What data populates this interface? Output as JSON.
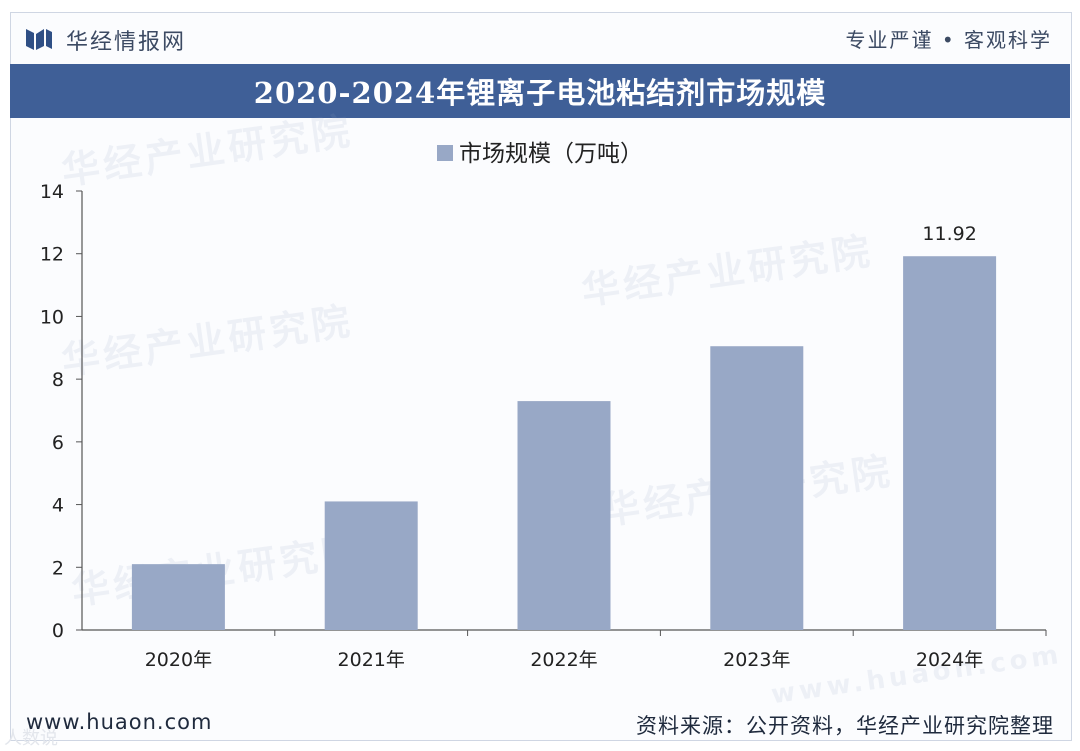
{
  "header": {
    "brand": "华经情报网",
    "slogan": "专业严谨 • 客观科学"
  },
  "title": "2020-2024年锂离子电池粘结剂市场规模",
  "watermarks": [
    "华经产业研究院",
    "华经产业研究院",
    "华经产业研究院",
    "华经产业研究院",
    "华经产业研究院",
    "www.huaon.com"
  ],
  "chart_data": {
    "type": "bar",
    "title": "2020-2024年锂离子电池粘结剂市场规模",
    "categories": [
      "2020年",
      "2021年",
      "2022年",
      "2023年",
      "2024年"
    ],
    "series": [
      {
        "name": "市场规模（万吨）",
        "values": [
          2.1,
          4.1,
          7.3,
          9.05,
          11.92
        ]
      }
    ],
    "data_labels": [
      null,
      null,
      null,
      null,
      "11.92"
    ],
    "yticks": [
      "0",
      "2",
      "4",
      "6",
      "8",
      "10",
      "12",
      "14"
    ],
    "ylim": [
      0,
      14
    ],
    "xlabel": "",
    "ylabel": "",
    "legend_position": "top-center",
    "grid": false,
    "colors": {
      "bar": "#98a8c6",
      "axis": "#555555",
      "banner": "#3f5f97"
    }
  },
  "footer": {
    "url": "www.huaon.com",
    "source": "资料来源：公开资料，华经产业研究院整理",
    "corner": "人数说"
  }
}
